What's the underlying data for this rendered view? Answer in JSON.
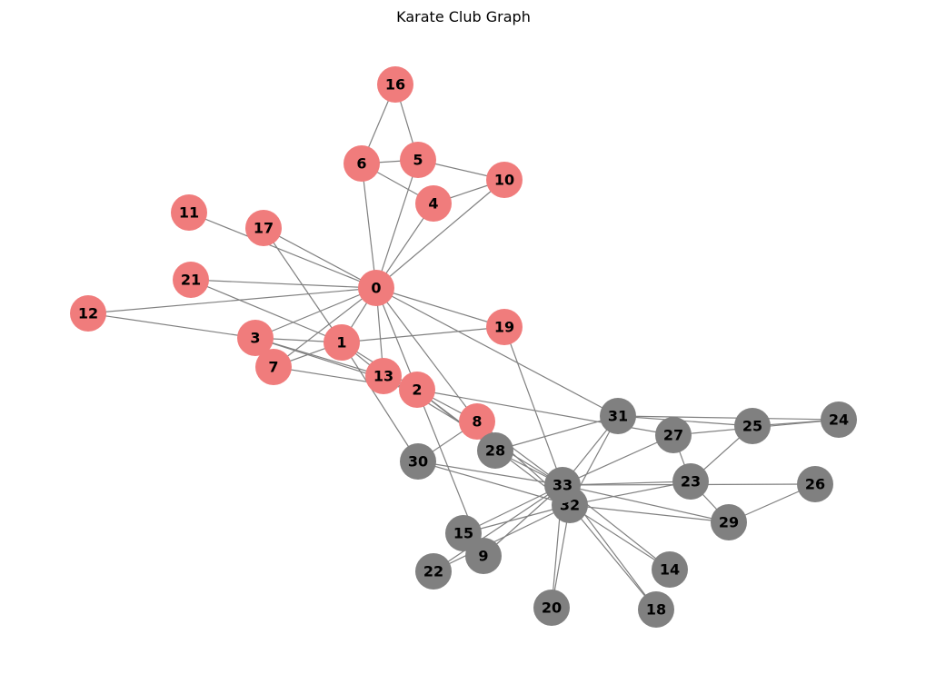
{
  "title": "Karate Club Graph",
  "colors": {
    "group_a": "#f07c7c",
    "group_b": "#808080",
    "edge": "#808080",
    "label": "#000000"
  },
  "nodes": [
    {
      "id": "0",
      "group": "a"
    },
    {
      "id": "1",
      "group": "a"
    },
    {
      "id": "2",
      "group": "a"
    },
    {
      "id": "3",
      "group": "a"
    },
    {
      "id": "4",
      "group": "a"
    },
    {
      "id": "5",
      "group": "a"
    },
    {
      "id": "6",
      "group": "a"
    },
    {
      "id": "7",
      "group": "a"
    },
    {
      "id": "8",
      "group": "a"
    },
    {
      "id": "9",
      "group": "b"
    },
    {
      "id": "10",
      "group": "a"
    },
    {
      "id": "11",
      "group": "a"
    },
    {
      "id": "12",
      "group": "a"
    },
    {
      "id": "13",
      "group": "a"
    },
    {
      "id": "14",
      "group": "b"
    },
    {
      "id": "15",
      "group": "b"
    },
    {
      "id": "16",
      "group": "a"
    },
    {
      "id": "17",
      "group": "a"
    },
    {
      "id": "18",
      "group": "b"
    },
    {
      "id": "19",
      "group": "a"
    },
    {
      "id": "20",
      "group": "b"
    },
    {
      "id": "21",
      "group": "a"
    },
    {
      "id": "22",
      "group": "b"
    },
    {
      "id": "23",
      "group": "b"
    },
    {
      "id": "24",
      "group": "b"
    },
    {
      "id": "25",
      "group": "b"
    },
    {
      "id": "26",
      "group": "b"
    },
    {
      "id": "27",
      "group": "b"
    },
    {
      "id": "28",
      "group": "b"
    },
    {
      "id": "29",
      "group": "b"
    },
    {
      "id": "30",
      "group": "b"
    },
    {
      "id": "31",
      "group": "b"
    },
    {
      "id": "32",
      "group": "b"
    },
    {
      "id": "33",
      "group": "b"
    }
  ],
  "edges": [
    [
      "0",
      "1"
    ],
    [
      "0",
      "2"
    ],
    [
      "0",
      "3"
    ],
    [
      "0",
      "4"
    ],
    [
      "0",
      "5"
    ],
    [
      "0",
      "6"
    ],
    [
      "0",
      "7"
    ],
    [
      "0",
      "8"
    ],
    [
      "0",
      "10"
    ],
    [
      "0",
      "11"
    ],
    [
      "0",
      "12"
    ],
    [
      "0",
      "13"
    ],
    [
      "0",
      "17"
    ],
    [
      "0",
      "19"
    ],
    [
      "0",
      "21"
    ],
    [
      "0",
      "31"
    ],
    [
      "1",
      "2"
    ],
    [
      "1",
      "3"
    ],
    [
      "1",
      "7"
    ],
    [
      "1",
      "13"
    ],
    [
      "1",
      "17"
    ],
    [
      "1",
      "19"
    ],
    [
      "1",
      "21"
    ],
    [
      "1",
      "30"
    ],
    [
      "2",
      "3"
    ],
    [
      "2",
      "7"
    ],
    [
      "2",
      "8"
    ],
    [
      "2",
      "9"
    ],
    [
      "2",
      "13"
    ],
    [
      "2",
      "27"
    ],
    [
      "2",
      "28"
    ],
    [
      "2",
      "32"
    ],
    [
      "3",
      "7"
    ],
    [
      "3",
      "12"
    ],
    [
      "3",
      "13"
    ],
    [
      "4",
      "6"
    ],
    [
      "4",
      "10"
    ],
    [
      "5",
      "6"
    ],
    [
      "5",
      "10"
    ],
    [
      "5",
      "16"
    ],
    [
      "6",
      "16"
    ],
    [
      "8",
      "30"
    ],
    [
      "8",
      "32"
    ],
    [
      "8",
      "33"
    ],
    [
      "9",
      "33"
    ],
    [
      "13",
      "33"
    ],
    [
      "14",
      "32"
    ],
    [
      "14",
      "33"
    ],
    [
      "15",
      "32"
    ],
    [
      "15",
      "33"
    ],
    [
      "18",
      "32"
    ],
    [
      "18",
      "33"
    ],
    [
      "19",
      "33"
    ],
    [
      "20",
      "32"
    ],
    [
      "20",
      "33"
    ],
    [
      "22",
      "32"
    ],
    [
      "22",
      "33"
    ],
    [
      "23",
      "25"
    ],
    [
      "23",
      "27"
    ],
    [
      "23",
      "29"
    ],
    [
      "23",
      "32"
    ],
    [
      "23",
      "33"
    ],
    [
      "24",
      "25"
    ],
    [
      "24",
      "27"
    ],
    [
      "24",
      "31"
    ],
    [
      "25",
      "31"
    ],
    [
      "26",
      "29"
    ],
    [
      "26",
      "33"
    ],
    [
      "27",
      "33"
    ],
    [
      "28",
      "31"
    ],
    [
      "28",
      "33"
    ],
    [
      "29",
      "32"
    ],
    [
      "29",
      "33"
    ],
    [
      "30",
      "32"
    ],
    [
      "30",
      "33"
    ],
    [
      "31",
      "32"
    ],
    [
      "31",
      "33"
    ],
    [
      "32",
      "33"
    ]
  ]
}
